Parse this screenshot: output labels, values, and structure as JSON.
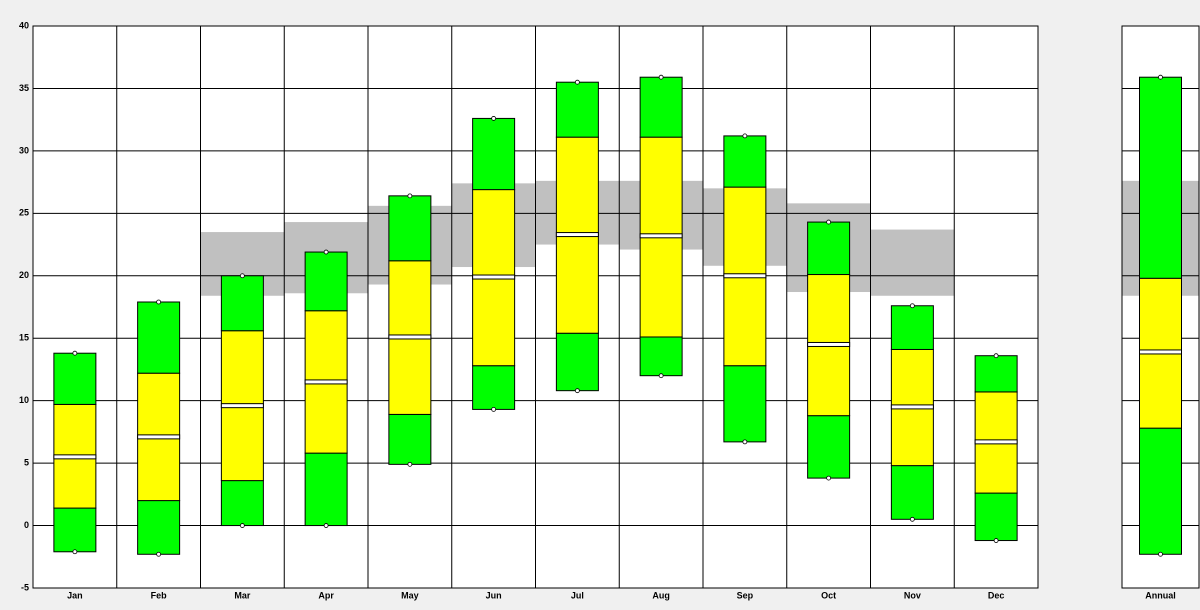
{
  "chart_data": [
    {
      "type": "box",
      "categories": [
        "Jan",
        "Feb",
        "Mar",
        "Apr",
        "May",
        "Jun",
        "Jul",
        "Aug",
        "Sep",
        "Oct",
        "Nov",
        "Dec"
      ],
      "max": [
        13.8,
        17.9,
        20.0,
        21.9,
        26.4,
        32.6,
        35.5,
        35.9,
        31.2,
        24.3,
        17.6,
        13.6
      ],
      "upper": [
        9.7,
        12.2,
        15.6,
        17.2,
        21.2,
        26.9,
        31.1,
        31.1,
        27.1,
        20.1,
        14.1,
        10.7
      ],
      "median": [
        5.5,
        7.1,
        9.6,
        11.5,
        15.1,
        19.9,
        23.3,
        23.2,
        20.0,
        14.5,
        9.5,
        6.7
      ],
      "lower": [
        1.4,
        2.0,
        3.6,
        5.8,
        8.9,
        12.8,
        15.4,
        15.1,
        12.8,
        8.8,
        4.8,
        2.6
      ],
      "min": [
        -2.1,
        -2.3,
        0.0,
        0.0,
        4.9,
        9.3,
        10.8,
        12.0,
        6.7,
        3.8,
        0.5,
        -1.2
      ],
      "band_low": [
        null,
        null,
        18.4,
        18.6,
        19.3,
        20.7,
        22.5,
        22.1,
        20.8,
        18.7,
        18.4,
        null
      ],
      "band_high": [
        null,
        null,
        23.5,
        24.3,
        25.6,
        27.4,
        27.6,
        27.6,
        27.0,
        25.8,
        23.7,
        null
      ],
      "outer_color": "#00ff00",
      "inner_color": "#ffff00",
      "band_color": "#c0c0c0",
      "ylim": [
        -5,
        40
      ],
      "yticks": [
        -5,
        0,
        5,
        10,
        15,
        20,
        25,
        30,
        35,
        40
      ],
      "grid": true
    },
    {
      "type": "box",
      "categories": [
        "Annual"
      ],
      "max": [
        35.9
      ],
      "upper": [
        19.8
      ],
      "median": [
        13.9
      ],
      "lower": [
        7.8
      ],
      "min": [
        -2.3
      ],
      "band_low": [
        18.4
      ],
      "band_high": [
        27.6
      ],
      "outer_color": "#00ff00",
      "inner_color": "#ffff00",
      "band_color": "#c0c0c0",
      "ylim": [
        -5,
        40
      ],
      "yticks": [
        -5,
        0,
        5,
        10,
        15,
        20,
        25,
        30,
        35,
        40
      ],
      "grid": true
    }
  ]
}
